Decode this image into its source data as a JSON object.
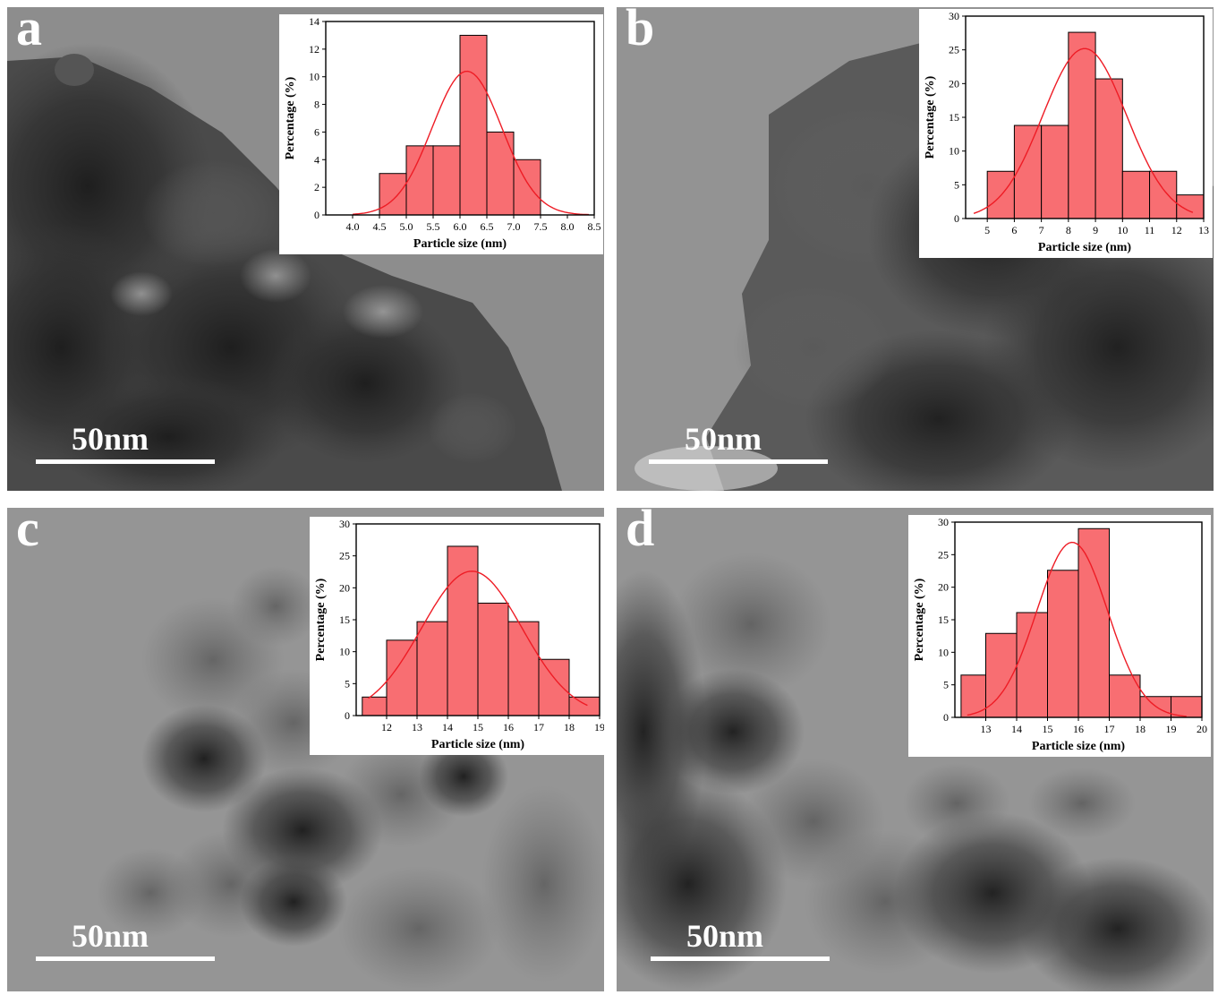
{
  "panels": [
    {
      "letter": "a",
      "scale_label": "50nm",
      "chart_data": {
        "type": "bar",
        "xlabel": "Particle size (nm)",
        "ylabel": "Percentage (%)",
        "xlim": [
          3.5,
          8.5
        ],
        "ylim": [
          0,
          14
        ],
        "xticks": [
          4.0,
          4.5,
          5.0,
          5.5,
          6.0,
          6.5,
          7.0,
          7.5,
          8.0,
          8.5
        ],
        "xtick_labels": [
          "4.0",
          "4.5",
          "5.0",
          "5.5",
          "6.0",
          "6.5",
          "7.0",
          "7.5",
          "8.0",
          "8.5"
        ],
        "yticks": [
          0,
          2,
          4,
          6,
          8,
          10,
          12,
          14
        ],
        "bars": [
          {
            "from": 4.5,
            "to": 5.0,
            "value": 3
          },
          {
            "from": 5.0,
            "to": 5.5,
            "value": 5
          },
          {
            "from": 5.5,
            "to": 6.0,
            "value": 5
          },
          {
            "from": 6.0,
            "to": 6.5,
            "value": 13
          },
          {
            "from": 6.5,
            "to": 7.0,
            "value": 6
          },
          {
            "from": 7.0,
            "to": 7.5,
            "value": 4
          }
        ],
        "fit": {
          "type": "gaussian",
          "center": 6.13,
          "sigma": 0.65,
          "peak": 10.4,
          "x_range": [
            4.0,
            8.4
          ]
        },
        "bar_color": "#f86e72",
        "fit_color": "#ee1c25"
      }
    },
    {
      "letter": "b",
      "scale_label": "50nm",
      "chart_data": {
        "type": "bar",
        "xlabel": "Particle size (nm)",
        "ylabel": "Percentage (%)",
        "xlim": [
          4.2,
          13
        ],
        "ylim": [
          0,
          30
        ],
        "xticks": [
          5,
          6,
          7,
          8,
          9,
          10,
          11,
          12,
          13
        ],
        "xtick_labels": [
          "5",
          "6",
          "7",
          "8",
          "9",
          "10",
          "11",
          "12",
          "13"
        ],
        "yticks": [
          0,
          5,
          10,
          15,
          20,
          25,
          30
        ],
        "bars": [
          {
            "from": 5,
            "to": 6,
            "value": 7
          },
          {
            "from": 6,
            "to": 7,
            "value": 13.8
          },
          {
            "from": 7,
            "to": 8,
            "value": 13.8
          },
          {
            "from": 8,
            "to": 9,
            "value": 27.6
          },
          {
            "from": 9,
            "to": 10,
            "value": 20.7
          },
          {
            "from": 10,
            "to": 11,
            "value": 7
          },
          {
            "from": 11,
            "to": 12,
            "value": 7
          },
          {
            "from": 12,
            "to": 13,
            "value": 3.5
          }
        ],
        "fit": {
          "type": "gaussian",
          "center": 8.6,
          "sigma": 1.55,
          "peak": 25.2,
          "x_range": [
            4.5,
            12.6
          ]
        },
        "bar_color": "#f86e72",
        "fit_color": "#ee1c25"
      }
    },
    {
      "letter": "c",
      "scale_label": "50nm",
      "chart_data": {
        "type": "bar",
        "xlabel": "Particle size (nm)",
        "ylabel": "Percentage (%)",
        "xlim": [
          11,
          19
        ],
        "ylim": [
          0,
          30
        ],
        "xticks": [
          12,
          13,
          14,
          15,
          16,
          17,
          18,
          19
        ],
        "xtick_labels": [
          "12",
          "13",
          "14",
          "15",
          "16",
          "17",
          "18",
          "19"
        ],
        "yticks": [
          0,
          5,
          10,
          15,
          20,
          25,
          30
        ],
        "bars": [
          {
            "from": 11.2,
            "to": 12,
            "value": 2.9
          },
          {
            "from": 12,
            "to": 13,
            "value": 11.8
          },
          {
            "from": 13,
            "to": 14,
            "value": 14.7
          },
          {
            "from": 14,
            "to": 15,
            "value": 26.5
          },
          {
            "from": 15,
            "to": 16,
            "value": 17.6
          },
          {
            "from": 16,
            "to": 17,
            "value": 14.7
          },
          {
            "from": 17,
            "to": 18,
            "value": 8.8
          },
          {
            "from": 18,
            "to": 19,
            "value": 2.9
          }
        ],
        "fit": {
          "type": "gaussian",
          "center": 14.8,
          "sigma": 1.65,
          "peak": 22.6,
          "x_range": [
            11.4,
            18.6
          ]
        },
        "bar_color": "#f86e72",
        "fit_color": "#ee1c25"
      }
    },
    {
      "letter": "d",
      "scale_label": "50nm",
      "chart_data": {
        "type": "bar",
        "xlabel": "Particle size (nm)",
        "ylabel": "Percentage (%)",
        "xlim": [
          12,
          20
        ],
        "ylim": [
          0,
          30
        ],
        "xticks": [
          13,
          14,
          15,
          16,
          17,
          18,
          19,
          20
        ],
        "xtick_labels": [
          "13",
          "14",
          "15",
          "16",
          "17",
          "18",
          "19",
          "20"
        ],
        "yticks": [
          0,
          5,
          10,
          15,
          20,
          25,
          30
        ],
        "bars": [
          {
            "from": 12.2,
            "to": 13,
            "value": 6.5
          },
          {
            "from": 13,
            "to": 14,
            "value": 12.9
          },
          {
            "from": 14,
            "to": 15,
            "value": 16.1
          },
          {
            "from": 15,
            "to": 16,
            "value": 22.6
          },
          {
            "from": 16,
            "to": 17,
            "value": 29
          },
          {
            "from": 17,
            "to": 18,
            "value": 6.5
          },
          {
            "from": 18,
            "to": 19,
            "value": 3.2
          },
          {
            "from": 19,
            "to": 20,
            "value": 3.2
          }
        ],
        "fit": {
          "type": "gaussian",
          "center": 15.8,
          "sigma": 1.15,
          "peak": 26.9,
          "x_range": [
            12.4,
            19.5
          ]
        },
        "bar_color": "#f86e72",
        "fit_color": "#ee1c25"
      }
    }
  ]
}
